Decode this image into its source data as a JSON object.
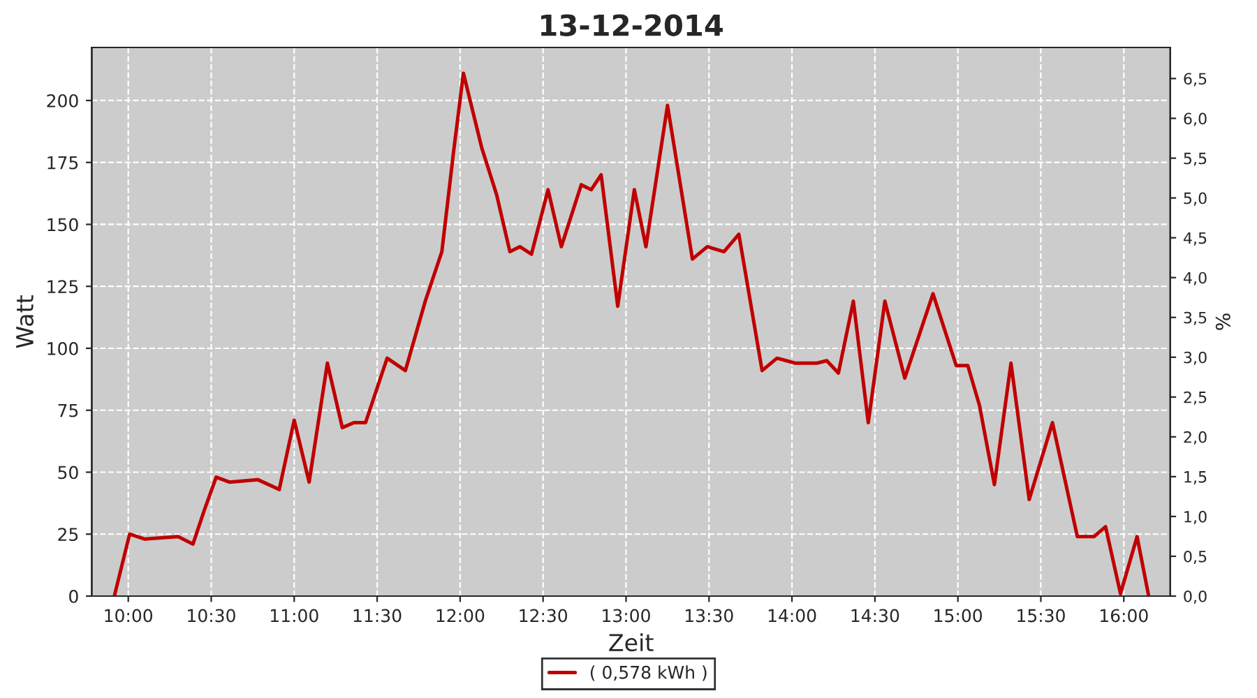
{
  "chart_data": {
    "type": "line",
    "title": "13-12-2014",
    "xlabel": "Zeit",
    "ylabel": "Watt",
    "y2label": "%",
    "series": [
      {
        "name": "( 0,578 kWh )",
        "color": "#c00000",
        "x": [
          9.916,
          10.008,
          10.1,
          10.3,
          10.39,
          10.46,
          10.53,
          10.61,
          10.78,
          10.91,
          11.0,
          11.09,
          11.2,
          11.29,
          11.36,
          11.43,
          11.56,
          11.67,
          11.79,
          11.89,
          11.96,
          12.02,
          12.13,
          12.22,
          12.3,
          12.36,
          12.43,
          12.53,
          12.61,
          12.73,
          12.79,
          12.85,
          12.95,
          13.05,
          13.12,
          13.25,
          13.4,
          13.49,
          13.59,
          13.68,
          13.82,
          13.91,
          14.02,
          14.15,
          14.21,
          14.28,
          14.37,
          14.46,
          14.56,
          14.68,
          14.85,
          14.99,
          15.06,
          15.13,
          15.22,
          15.32,
          15.43,
          15.57,
          15.72,
          15.82,
          15.89,
          15.98,
          16.08,
          16.15
        ],
        "values": [
          0,
          25,
          23,
          24,
          21,
          35,
          48,
          46,
          47,
          43,
          71,
          46,
          94,
          68,
          70,
          70,
          96,
          91,
          119,
          139,
          179,
          211,
          181,
          162,
          139,
          141,
          138,
          164,
          141,
          166,
          164,
          170,
          117,
          164,
          141,
          198,
          136,
          141,
          139,
          146,
          91,
          96,
          94,
          94,
          95,
          90,
          119,
          70,
          119,
          88,
          122,
          93,
          93,
          77,
          45,
          94,
          39,
          70,
          24,
          24,
          28,
          1,
          24,
          0
        ]
      }
    ],
    "xlim": [
      9.78,
      16.28
    ],
    "xticks": [
      {
        "value": 10,
        "label": "10:00"
      },
      {
        "value": 10.5,
        "label": "10:30"
      },
      {
        "value": 11,
        "label": "11:00"
      },
      {
        "value": 11.5,
        "label": "11:30"
      },
      {
        "value": 12,
        "label": "12:00"
      },
      {
        "value": 12.5,
        "label": "12:30"
      },
      {
        "value": 13,
        "label": "13:00"
      },
      {
        "value": 13.5,
        "label": "13:30"
      },
      {
        "value": 14,
        "label": "14:00"
      },
      {
        "value": 14.5,
        "label": "14:30"
      },
      {
        "value": 15,
        "label": "15:00"
      },
      {
        "value": 15.5,
        "label": "15:30"
      },
      {
        "value": 16,
        "label": "16:00"
      }
    ],
    "ylim": [
      0,
      221.4
    ],
    "yticks": [
      0,
      25,
      50,
      75,
      100,
      125,
      150,
      175,
      200
    ],
    "y2lim": [
      0,
      6.89
    ],
    "y2ticks": [
      {
        "value": 0,
        "label": "0,0"
      },
      {
        "value": 0.5,
        "label": "0,5"
      },
      {
        "value": 1,
        "label": "1,0"
      },
      {
        "value": 1.5,
        "label": "1,5"
      },
      {
        "value": 2,
        "label": "2,0"
      },
      {
        "value": 2.5,
        "label": "2,5"
      },
      {
        "value": 3,
        "label": "3,0"
      },
      {
        "value": 3.5,
        "label": "3,5"
      },
      {
        "value": 4,
        "label": "4,0"
      },
      {
        "value": 4.5,
        "label": "4,5"
      },
      {
        "value": 5,
        "label": "5,0"
      },
      {
        "value": 5.5,
        "label": "5,5"
      },
      {
        "value": 6,
        "label": "6,0"
      },
      {
        "value": 6.5,
        "label": "6,5"
      }
    ],
    "grid": true,
    "legend": "bottom",
    "marker": "none",
    "line_style": "solid"
  }
}
